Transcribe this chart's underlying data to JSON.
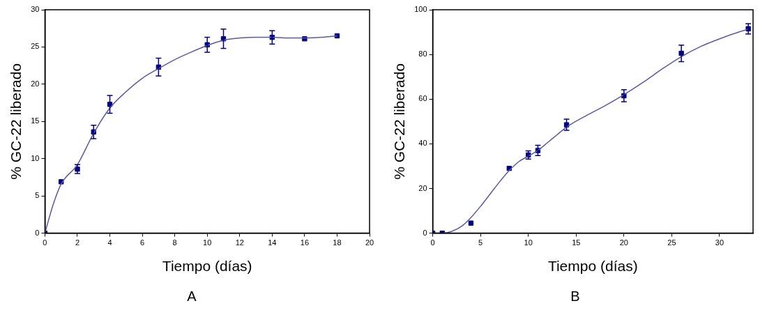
{
  "chart_data": [
    {
      "type": "scatter",
      "xlabel": "Tiempo (días)",
      "ylabel": "% GC-22 liberado",
      "annotations": [
        "A"
      ],
      "xlim": [
        0,
        20
      ],
      "xticks": [
        0,
        2,
        4,
        6,
        8,
        10,
        12,
        14,
        16,
        18,
        20
      ],
      "ylim": [
        0,
        30
      ],
      "yticks": [
        0,
        5,
        10,
        15,
        20,
        25,
        30
      ],
      "grid": false,
      "legend": false,
      "marker": "square",
      "series": [
        {
          "type": "line",
          "color": "#5858a8",
          "marker": "none",
          "x": [
            0,
            0.5,
            1,
            2,
            3,
            4,
            5,
            6,
            7,
            8,
            9,
            10,
            11,
            12,
            13,
            14,
            15,
            16,
            17,
            18
          ],
          "values": [
            0,
            3.8,
            6.6,
            9.2,
            13.4,
            16.8,
            19.0,
            20.8,
            22.1,
            23.3,
            24.3,
            25.2,
            25.9,
            26.2,
            26.3,
            26.3,
            26.2,
            26.2,
            26.3,
            26.5
          ]
        },
        {
          "color": "#000080",
          "x": [
            0,
            1,
            2,
            3,
            4,
            7,
            10,
            11,
            14,
            16,
            18
          ],
          "values": [
            0,
            6.9,
            8.6,
            13.6,
            17.3,
            22.3,
            25.3,
            26.1,
            26.3,
            26.1,
            26.5
          ],
          "errors": [
            null,
            null,
            0.6,
            0.9,
            1.2,
            1.2,
            1.0,
            1.3,
            0.9,
            null,
            null
          ]
        }
      ]
    },
    {
      "type": "scatter",
      "xlabel": "Tiempo (días)",
      "ylabel": "% GC-22 liberado",
      "annotations": [
        "B"
      ],
      "xlim": [
        0,
        33.5
      ],
      "xticks": [
        0,
        5,
        10,
        15,
        20,
        25,
        30
      ],
      "ylim": [
        0,
        100
      ],
      "yticks": [
        0,
        20,
        40,
        60,
        80,
        100
      ],
      "grid": false,
      "legend": false,
      "marker": "square",
      "series": [
        {
          "type": "line",
          "color": "#5858a8",
          "marker": "none",
          "x": [
            0,
            1,
            2,
            3,
            4,
            5,
            6,
            7,
            8,
            9,
            10,
            11,
            12,
            13,
            14,
            16,
            18,
            20,
            22,
            24,
            26,
            28,
            30,
            32,
            33
          ],
          "values": [
            0,
            0,
            0.8,
            3,
            7,
            12,
            17.5,
            23,
            28,
            32,
            34.5,
            37,
            40.5,
            44,
            47.5,
            52.5,
            57,
            62,
            67.5,
            73.5,
            79,
            83.5,
            87,
            90,
            91.3
          ]
        },
        {
          "color": "#000080",
          "x": [
            0,
            1,
            4,
            8,
            10,
            11,
            14,
            20,
            26,
            33
          ],
          "values": [
            0,
            0,
            4.5,
            29,
            35,
            37,
            48.5,
            61.5,
            80.5,
            91.5
          ],
          "errors": [
            null,
            null,
            null,
            null,
            1.8,
            2.3,
            2.5,
            2.7,
            3.7,
            2.3
          ]
        }
      ]
    }
  ]
}
